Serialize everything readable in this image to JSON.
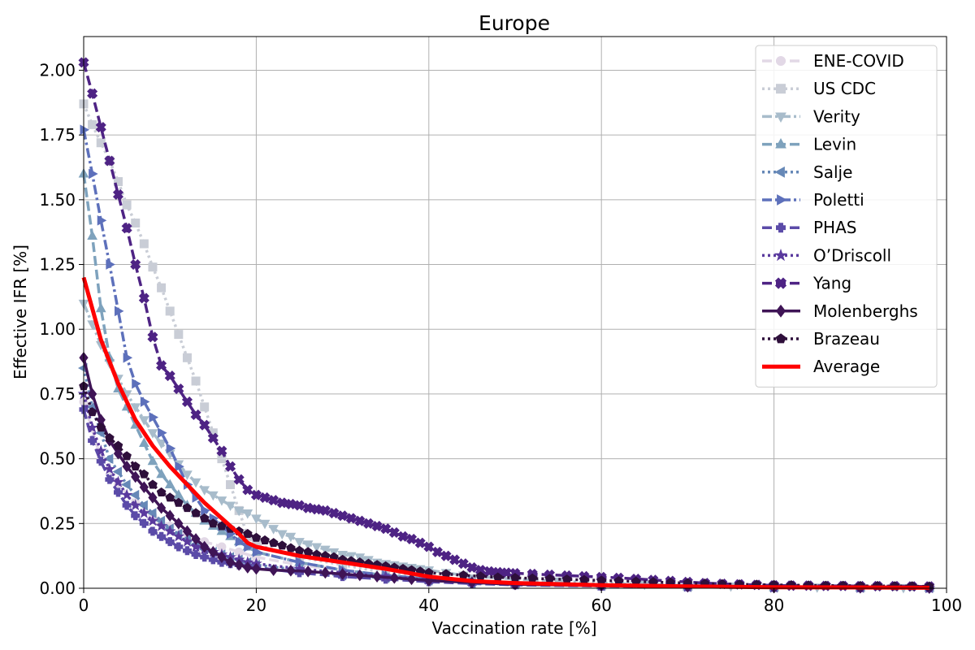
{
  "chart_data": {
    "type": "line",
    "title": "Europe",
    "xlabel": "Vaccination rate [%]",
    "ylabel": "Effective IFR [%]",
    "xlim": [
      0,
      100
    ],
    "ylim": [
      0,
      2.13
    ],
    "xticks": [
      0,
      20,
      40,
      60,
      80,
      100
    ],
    "xtick_labels": [
      "0",
      "20",
      "40",
      "60",
      "80",
      "100"
    ],
    "yticks": [
      0,
      0.25,
      0.5,
      0.75,
      1.0,
      1.25,
      1.5,
      1.75,
      2.0
    ],
    "ytick_labels": [
      "0.00",
      "0.25",
      "0.50",
      "0.75",
      "1.00",
      "1.25",
      "1.50",
      "1.75",
      "2.00"
    ],
    "grid": true,
    "legend_position": "top-right",
    "series": [
      {
        "name": "ENE-COVID",
        "color": "#e2d8e6",
        "dash": "dashed",
        "marker": "circle",
        "marker_every": 1,
        "x": [
          0,
          2,
          4,
          6,
          8,
          10,
          12,
          14,
          16,
          18,
          20,
          25,
          30,
          35,
          40,
          45,
          50,
          60,
          70,
          80,
          90,
          98
        ],
        "y": [
          0.72,
          0.5,
          0.4,
          0.33,
          0.28,
          0.24,
          0.21,
          0.18,
          0.16,
          0.14,
          0.12,
          0.09,
          0.07,
          0.05,
          0.035,
          0.025,
          0.018,
          0.01,
          0.005,
          0.003,
          0.002,
          0.001
        ]
      },
      {
        "name": "US CDC",
        "color": "#c9cdd6",
        "dash": "dotted",
        "marker": "square",
        "marker_every": 1,
        "x": [
          0,
          1,
          2,
          3,
          4,
          5,
          6,
          7,
          8,
          9,
          10,
          11,
          12,
          13,
          14,
          15,
          16,
          17,
          18,
          19,
          20,
          25,
          30,
          35,
          40,
          45,
          50,
          60,
          70,
          80,
          90,
          98
        ],
        "y": [
          1.87,
          1.79,
          1.72,
          1.65,
          1.57,
          1.48,
          1.41,
          1.33,
          1.24,
          1.16,
          1.07,
          0.98,
          0.89,
          0.8,
          0.7,
          0.6,
          0.5,
          0.4,
          0.3,
          0.2,
          0.17,
          0.12,
          0.09,
          0.06,
          0.04,
          0.028,
          0.02,
          0.01,
          0.006,
          0.003,
          0.002,
          0.001
        ]
      },
      {
        "name": "Verity",
        "color": "#a8bccb",
        "dash": "dashdot",
        "marker": "triangle-down",
        "marker_every": 1,
        "x": [
          0,
          1,
          2,
          3,
          4,
          5,
          6,
          7,
          8,
          9,
          10,
          11,
          12,
          13,
          14,
          15,
          16,
          17,
          18,
          19,
          20,
          21,
          22,
          23,
          24,
          25,
          26,
          27,
          28,
          29,
          30,
          31,
          32,
          33,
          34,
          35,
          36,
          37,
          38,
          39,
          40,
          42,
          44,
          46,
          48,
          50,
          55,
          60,
          65,
          70,
          75,
          80,
          85,
          90,
          95,
          98
        ],
        "y": [
          1.1,
          1.02,
          0.94,
          0.87,
          0.81,
          0.75,
          0.7,
          0.65,
          0.6,
          0.56,
          0.52,
          0.48,
          0.44,
          0.41,
          0.38,
          0.36,
          0.34,
          0.32,
          0.3,
          0.29,
          0.27,
          0.25,
          0.23,
          0.21,
          0.2,
          0.18,
          0.17,
          0.16,
          0.15,
          0.14,
          0.13,
          0.125,
          0.12,
          0.11,
          0.1,
          0.095,
          0.09,
          0.085,
          0.08,
          0.075,
          0.07,
          0.06,
          0.05,
          0.045,
          0.04,
          0.035,
          0.027,
          0.02,
          0.015,
          0.011,
          0.008,
          0.006,
          0.004,
          0.003,
          0.002,
          0.001
        ]
      },
      {
        "name": "Levin",
        "color": "#7ea2bd",
        "dash": "dashed",
        "marker": "triangle-up",
        "marker_every": 1,
        "x": [
          0,
          1,
          2,
          3,
          4,
          5,
          6,
          7,
          8,
          9,
          10,
          11,
          12,
          13,
          14,
          15,
          16,
          17,
          18,
          19,
          20,
          25,
          30,
          35,
          40,
          45,
          50,
          60,
          70,
          80,
          90,
          98
        ],
        "y": [
          1.6,
          1.36,
          1.08,
          0.89,
          0.77,
          0.7,
          0.63,
          0.56,
          0.49,
          0.44,
          0.4,
          0.36,
          0.32,
          0.29,
          0.26,
          0.24,
          0.22,
          0.2,
          0.18,
          0.16,
          0.14,
          0.1,
          0.07,
          0.05,
          0.035,
          0.025,
          0.018,
          0.01,
          0.006,
          0.003,
          0.002,
          0.001
        ]
      },
      {
        "name": "Salje",
        "color": "#6688b7",
        "dash": "dotted",
        "marker": "triangle-left",
        "marker_every": 1,
        "x": [
          0,
          1,
          2,
          3,
          4,
          5,
          6,
          7,
          8,
          9,
          10,
          11,
          12,
          13,
          14,
          15,
          16,
          17,
          18,
          19,
          20,
          25,
          30,
          35,
          40,
          45,
          50,
          60,
          70,
          80,
          90,
          98
        ],
        "y": [
          0.85,
          0.7,
          0.6,
          0.5,
          0.45,
          0.4,
          0.36,
          0.32,
          0.29,
          0.26,
          0.23,
          0.21,
          0.19,
          0.17,
          0.15,
          0.14,
          0.13,
          0.12,
          0.11,
          0.1,
          0.09,
          0.07,
          0.05,
          0.04,
          0.03,
          0.02,
          0.015,
          0.009,
          0.005,
          0.003,
          0.002,
          0.001
        ]
      },
      {
        "name": "Poletti",
        "color": "#5d70bb",
        "dash": "dashdot",
        "marker": "triangle-right",
        "marker_every": 1,
        "x": [
          0,
          1,
          2,
          3,
          4,
          5,
          6,
          7,
          8,
          9,
          10,
          11,
          12,
          13,
          14,
          15,
          16,
          17,
          18,
          19,
          20,
          25,
          30,
          35,
          40,
          45,
          50,
          60,
          70,
          80,
          90,
          98
        ],
        "y": [
          1.77,
          1.6,
          1.42,
          1.25,
          1.07,
          0.89,
          0.79,
          0.72,
          0.66,
          0.6,
          0.54,
          0.47,
          0.4,
          0.35,
          0.3,
          0.27,
          0.24,
          0.21,
          0.18,
          0.16,
          0.14,
          0.1,
          0.07,
          0.05,
          0.035,
          0.025,
          0.018,
          0.01,
          0.006,
          0.003,
          0.002,
          0.001
        ]
      },
      {
        "name": "PHAS",
        "color": "#5b4ba8",
        "dash": "dashed",
        "marker": "plus",
        "marker_every": 1,
        "x": [
          0,
          1,
          2,
          3,
          4,
          5,
          6,
          7,
          8,
          9,
          10,
          11,
          12,
          13,
          14,
          15,
          16,
          17,
          18,
          19,
          20,
          25,
          30,
          35,
          40,
          45,
          50,
          60,
          70,
          80,
          90,
          98
        ],
        "y": [
          0.69,
          0.57,
          0.49,
          0.42,
          0.37,
          0.32,
          0.28,
          0.25,
          0.22,
          0.2,
          0.18,
          0.16,
          0.145,
          0.13,
          0.12,
          0.11,
          0.1,
          0.095,
          0.09,
          0.085,
          0.08,
          0.06,
          0.045,
          0.035,
          0.025,
          0.018,
          0.013,
          0.008,
          0.005,
          0.003,
          0.002,
          0.001
        ]
      },
      {
        "name": "O’Driscoll",
        "color": "#5a3a9e",
        "dash": "dotted",
        "marker": "star",
        "marker_every": 1,
        "x": [
          0,
          1,
          2,
          3,
          4,
          5,
          6,
          7,
          8,
          9,
          10,
          11,
          12,
          13,
          14,
          15,
          16,
          17,
          18,
          19,
          20,
          25,
          30,
          35,
          40,
          45,
          50,
          60,
          70,
          80,
          90,
          98
        ],
        "y": [
          0.75,
          0.62,
          0.53,
          0.46,
          0.41,
          0.36,
          0.32,
          0.29,
          0.26,
          0.24,
          0.22,
          0.2,
          0.18,
          0.16,
          0.15,
          0.14,
          0.13,
          0.12,
          0.11,
          0.1,
          0.095,
          0.075,
          0.06,
          0.045,
          0.033,
          0.024,
          0.017,
          0.01,
          0.006,
          0.003,
          0.002,
          0.001
        ]
      },
      {
        "name": "Yang",
        "color": "#4e2384",
        "dash": "dashed",
        "marker": "x-filled",
        "marker_every": 1,
        "x": [
          0,
          1,
          2,
          3,
          4,
          5,
          6,
          7,
          8,
          9,
          10,
          11,
          12,
          13,
          14,
          15,
          16,
          17,
          18,
          19,
          20,
          21,
          22,
          23,
          24,
          25,
          26,
          27,
          28,
          29,
          30,
          31,
          32,
          33,
          34,
          35,
          36,
          37,
          38,
          39,
          40,
          41,
          42,
          43,
          44,
          45,
          46,
          47,
          48,
          49,
          50,
          52,
          54,
          56,
          58,
          60,
          62,
          64,
          66,
          68,
          70,
          72,
          74,
          76,
          78,
          80,
          82,
          84,
          86,
          88,
          90,
          92,
          94,
          96,
          98
        ],
        "y": [
          2.03,
          1.91,
          1.78,
          1.65,
          1.52,
          1.39,
          1.25,
          1.12,
          0.97,
          0.86,
          0.82,
          0.77,
          0.72,
          0.67,
          0.63,
          0.58,
          0.53,
          0.47,
          0.42,
          0.38,
          0.36,
          0.35,
          0.34,
          0.33,
          0.325,
          0.32,
          0.31,
          0.305,
          0.3,
          0.29,
          0.28,
          0.27,
          0.26,
          0.25,
          0.24,
          0.23,
          0.215,
          0.2,
          0.19,
          0.175,
          0.16,
          0.14,
          0.125,
          0.11,
          0.095,
          0.08,
          0.07,
          0.065,
          0.062,
          0.06,
          0.058,
          0.055,
          0.052,
          0.049,
          0.046,
          0.043,
          0.04,
          0.036,
          0.032,
          0.028,
          0.024,
          0.02,
          0.017,
          0.015,
          0.013,
          0.011,
          0.01,
          0.01,
          0.009,
          0.009,
          0.008,
          0.008,
          0.008,
          0.007,
          0.007
        ]
      },
      {
        "name": "Molenberghs",
        "color": "#3f1456",
        "dash": "solid",
        "marker": "diamond",
        "marker_every": 1,
        "x": [
          0,
          1,
          2,
          3,
          4,
          5,
          6,
          7,
          8,
          9,
          10,
          11,
          12,
          13,
          14,
          15,
          16,
          17,
          18,
          19,
          20,
          22,
          24,
          26,
          28,
          30,
          32,
          34,
          36,
          38,
          40,
          45,
          50,
          60,
          70,
          80,
          90,
          98
        ],
        "y": [
          0.89,
          0.75,
          0.65,
          0.57,
          0.52,
          0.47,
          0.43,
          0.39,
          0.35,
          0.31,
          0.28,
          0.25,
          0.22,
          0.19,
          0.16,
          0.14,
          0.12,
          0.1,
          0.09,
          0.08,
          0.075,
          0.07,
          0.068,
          0.065,
          0.06,
          0.055,
          0.05,
          0.045,
          0.04,
          0.035,
          0.03,
          0.022,
          0.015,
          0.01,
          0.006,
          0.003,
          0.002,
          0.001
        ]
      },
      {
        "name": "Brazeau",
        "color": "#2e0f3b",
        "dash": "dotted",
        "marker": "pentagon",
        "marker_every": 1,
        "x": [
          0,
          1,
          2,
          3,
          4,
          5,
          6,
          7,
          8,
          9,
          10,
          11,
          12,
          13,
          14,
          15,
          16,
          17,
          18,
          19,
          20,
          21,
          22,
          23,
          24,
          25,
          26,
          27,
          28,
          29,
          30,
          31,
          32,
          33,
          34,
          35,
          36,
          37,
          38,
          39,
          40,
          42,
          44,
          46,
          48,
          50,
          52,
          54,
          56,
          58,
          60,
          62,
          64,
          66,
          68,
          70,
          72,
          74,
          76,
          78,
          80,
          82,
          84,
          86,
          88,
          90,
          92,
          94,
          96,
          98
        ],
        "y": [
          0.78,
          0.68,
          0.62,
          0.58,
          0.55,
          0.51,
          0.47,
          0.44,
          0.4,
          0.37,
          0.35,
          0.33,
          0.31,
          0.29,
          0.27,
          0.25,
          0.24,
          0.23,
          0.22,
          0.21,
          0.195,
          0.185,
          0.175,
          0.165,
          0.155,
          0.145,
          0.14,
          0.13,
          0.125,
          0.12,
          0.11,
          0.105,
          0.1,
          0.095,
          0.09,
          0.085,
          0.08,
          0.075,
          0.07,
          0.065,
          0.06,
          0.055,
          0.05,
          0.046,
          0.042,
          0.04,
          0.038,
          0.036,
          0.034,
          0.032,
          0.03,
          0.028,
          0.026,
          0.024,
          0.022,
          0.02,
          0.018,
          0.016,
          0.015,
          0.014,
          0.013,
          0.012,
          0.011,
          0.01,
          0.01,
          0.009,
          0.009,
          0.008,
          0.008,
          0.007
        ]
      },
      {
        "name": "Average",
        "color": "#ff0000",
        "dash": "solid",
        "marker": "none",
        "marker_every": 1,
        "x": [
          0,
          2,
          4,
          6,
          8,
          10,
          12,
          14,
          16,
          18,
          19,
          20,
          25,
          30,
          35,
          40,
          45,
          50,
          60,
          70,
          80,
          90,
          98
        ],
        "y": [
          1.2,
          0.96,
          0.79,
          0.65,
          0.55,
          0.47,
          0.4,
          0.33,
          0.27,
          0.21,
          0.175,
          0.16,
          0.125,
          0.1,
          0.075,
          0.045,
          0.028,
          0.02,
          0.012,
          0.007,
          0.004,
          0.003,
          0.002
        ]
      }
    ]
  }
}
